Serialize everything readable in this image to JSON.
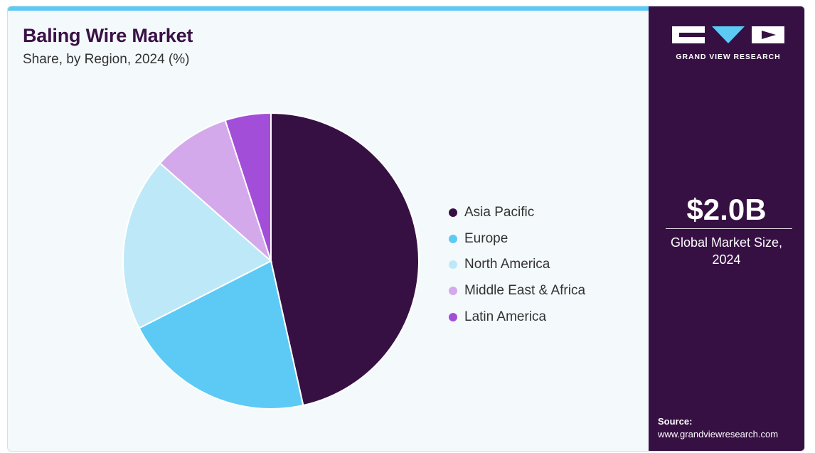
{
  "header": {
    "title": "Baling Wire Market",
    "subtitle": "Share, by Region, 2024 (%)"
  },
  "chart_data": {
    "type": "pie",
    "title": "Baling Wire Market",
    "subtitle": "Share, by Region, 2024 (%)",
    "legend_position": "right",
    "slices": [
      {
        "label": "Asia Pacific",
        "value": 46.5,
        "color": "#361043"
      },
      {
        "label": "Europe",
        "value": 21.0,
        "color": "#5ccaf5"
      },
      {
        "label": "North America",
        "value": 19.0,
        "color": "#bde8f8"
      },
      {
        "label": "Middle East & Africa",
        "value": 8.5,
        "color": "#d4a9ec"
      },
      {
        "label": "Latin America",
        "value": 5.0,
        "color": "#a34ed8"
      }
    ]
  },
  "sidebar": {
    "logo_text": "GRAND VIEW RESEARCH",
    "stat_value": "$2.0B",
    "stat_caption": "Global Market Size, 2024",
    "source_label": "Source:",
    "source_url": "www.grandviewresearch.com"
  },
  "colors": {
    "brand_dark": "#361043",
    "accent": "#5ccaf5",
    "background": "#f4f9fc"
  }
}
